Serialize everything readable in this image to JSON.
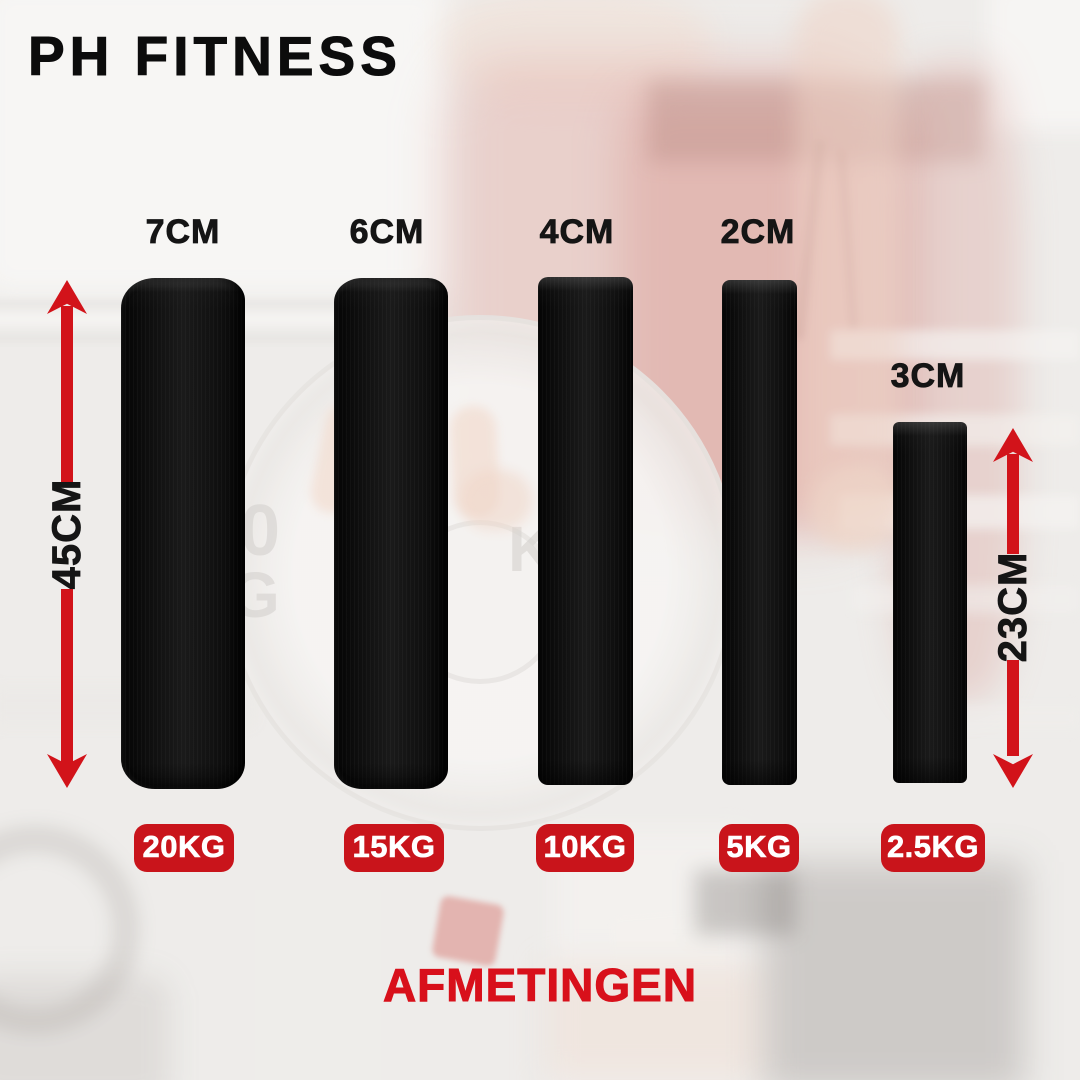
{
  "brand": {
    "logo_text": "PH FITNESS"
  },
  "title": "AFMETINGEN",
  "colors": {
    "accent_red": "#d2131a",
    "badge_red": "#c9141b",
    "title_red": "#d8101b",
    "label_black": "#151515"
  },
  "plates": [
    {
      "thickness_cm": "7CM",
      "weight_kg": "20KG"
    },
    {
      "thickness_cm": "6CM",
      "weight_kg": "15KG"
    },
    {
      "thickness_cm": "4CM",
      "weight_kg": "10KG"
    },
    {
      "thickness_cm": "2CM",
      "weight_kg": "5KG"
    },
    {
      "thickness_cm": "3CM",
      "weight_kg": "2.5KG"
    }
  ],
  "measurements": {
    "large_plate_diameter": "45CM",
    "small_plate_diameter": "23CM"
  },
  "background": {
    "faded_plate_letters": [
      "0",
      "G",
      "K"
    ]
  }
}
